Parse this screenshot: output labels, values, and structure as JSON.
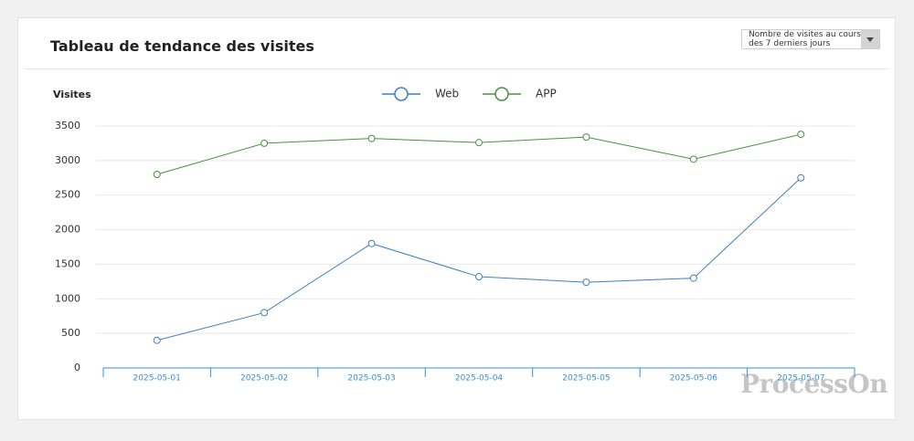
{
  "chart_data": {
    "type": "line",
    "title": "Tableau de tendance des visites",
    "y_label": "Visites",
    "categories": [
      "2025-05-01",
      "2025-05-02",
      "2025-05-03",
      "2025-05-04",
      "2025-05-05",
      "2025-05-06",
      "2025-05-07"
    ],
    "series": [
      {
        "name": "Web",
        "color": "#3d7fc4",
        "values": [
          400,
          800,
          1800,
          1320,
          1240,
          1300,
          2750
        ]
      },
      {
        "name": "APP",
        "color": "#4a8f45",
        "values": [
          2800,
          3250,
          3320,
          3260,
          3340,
          3020,
          3380
        ]
      }
    ],
    "ylim": [
      0,
      3500
    ],
    "yticks": [
      0,
      500,
      1000,
      1500,
      2000,
      2500,
      3000,
      3500
    ],
    "grid": true
  },
  "dropdown": "Nombre de visites au cours des 7 derniers jours",
  "watermark": "ProcessOn"
}
